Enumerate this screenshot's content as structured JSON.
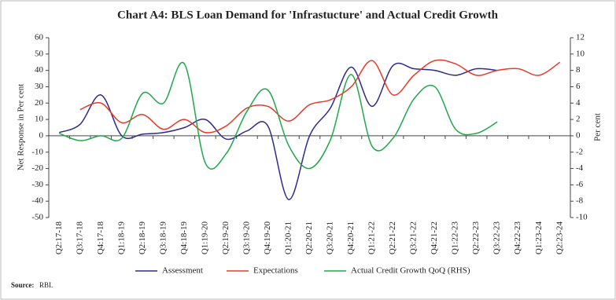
{
  "chart_data": {
    "type": "line",
    "title": "Chart A4: BLS Loan Demand for 'Infrastucture' and Actual Credit Growth",
    "y_label": "Net Response in Per cent",
    "y2_label": "Per cent",
    "categories": [
      "Q2:17-18",
      "Q3:17-18",
      "Q4:17-18",
      "Q1:18-19",
      "Q2:18-19",
      "Q3:18-19",
      "Q4:18-19",
      "Q1:19-20",
      "Q2:19-20",
      "Q3:19-20",
      "Q4:19-20",
      "Q1:20-21",
      "Q2:20-21",
      "Q3:20-21",
      "Q4:20-21",
      "Q1:21-22",
      "Q2:21-22",
      "Q3:21-22",
      "Q4:21-22",
      "Q1:22-23",
      "Q2:22-23",
      "Q3:22-23",
      "Q4:22-23",
      "Q1:23-24",
      "Q2:23-24"
    ],
    "series": [
      {
        "name": "Assessment",
        "color": "#2e2a8c",
        "values": [
          2,
          7,
          25,
          0,
          1,
          2,
          5,
          10,
          -2,
          3,
          6,
          -39,
          0,
          17,
          42,
          18,
          43,
          41,
          40,
          37,
          41,
          40,
          null,
          null,
          null
        ]
      },
      {
        "name": "Expectations",
        "color": "#e8392a",
        "values": [
          null,
          16,
          20,
          8,
          13,
          4,
          10,
          2,
          6,
          17,
          18,
          9,
          19,
          22,
          30,
          46,
          25,
          37,
          46,
          44,
          37,
          40,
          41,
          37,
          45
        ]
      },
      {
        "name": "Actual Credit Growth QoQ (RHS)",
        "color": "#1fa84a",
        "axis": "y2",
        "values": [
          0.3,
          -0.6,
          0,
          -0.3,
          5.2,
          4,
          8.8,
          -3.3,
          -2.2,
          3,
          5.6,
          -1.2,
          -4,
          -0.5,
          7.5,
          -1.3,
          -0.3,
          4.5,
          6,
          0.8,
          0.3,
          1.7,
          null,
          null,
          null
        ]
      }
    ],
    "ylim": [
      -50,
      60
    ],
    "yticks": [
      -50,
      -40,
      -30,
      -20,
      -10,
      0,
      10,
      20,
      30,
      40,
      50,
      60
    ],
    "y2lim": [
      -10,
      12
    ],
    "y2ticks": [
      -10,
      -8,
      -6,
      -4,
      -2,
      0,
      2,
      4,
      6,
      8,
      10,
      12
    ],
    "grid": false,
    "source": {
      "label": "Source:",
      "text": "RBI."
    }
  }
}
